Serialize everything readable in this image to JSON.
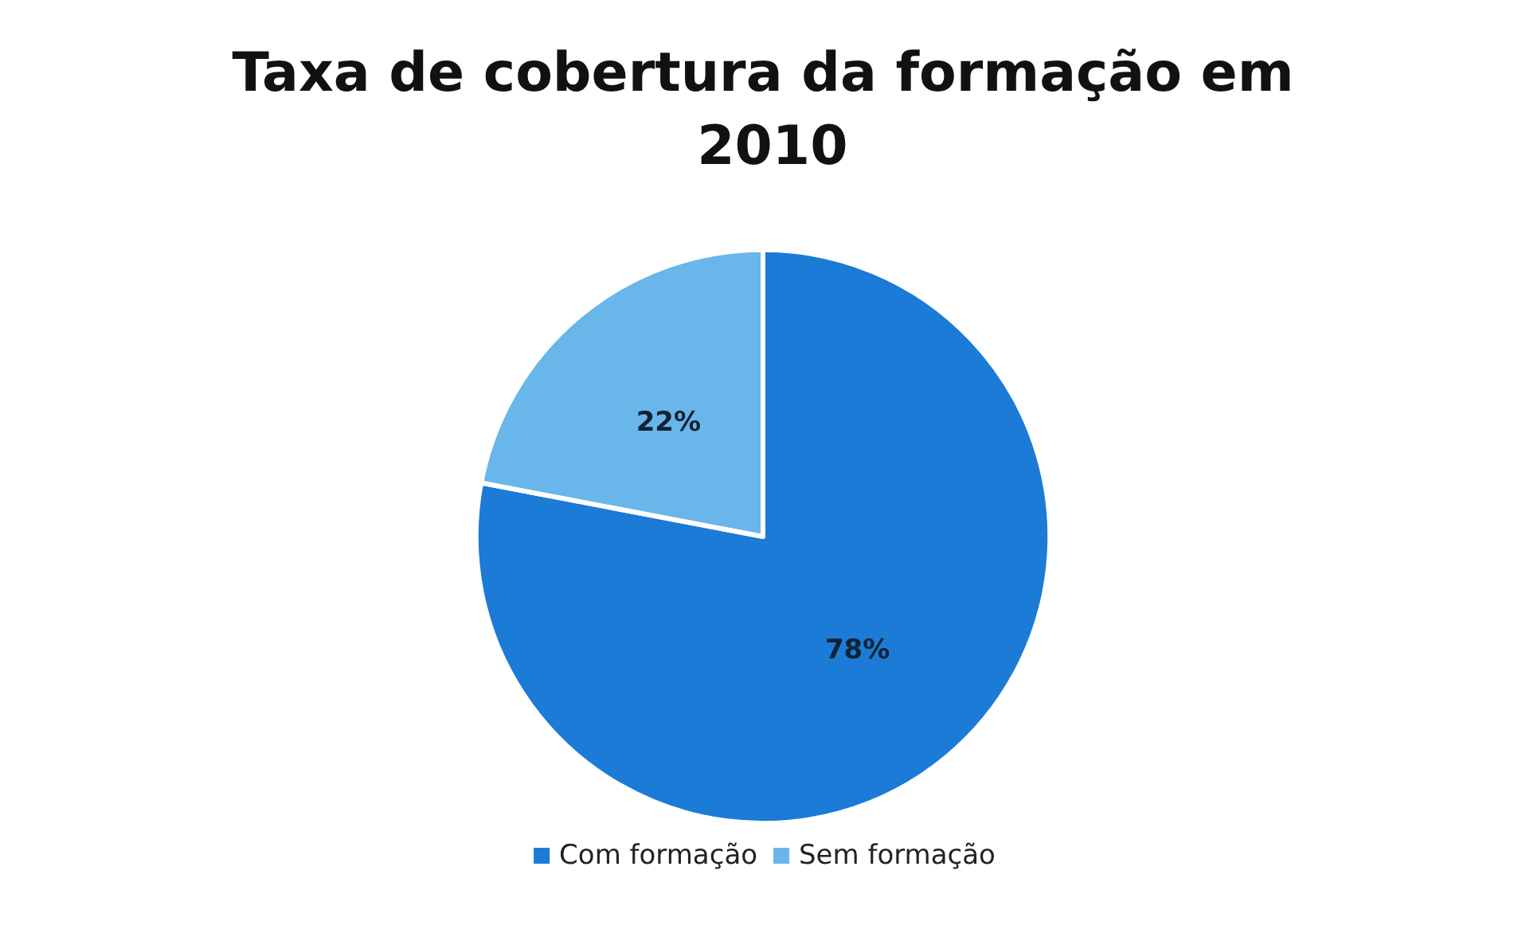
{
  "chart_data": {
    "type": "pie",
    "title": "Taxa de cobertura da formação em 2010",
    "categories": [
      "Com formação",
      "Sem formação"
    ],
    "values": [
      78,
      22
    ],
    "colors": [
      "#1b7bd6",
      "#69b6ea"
    ],
    "value_labels": [
      "78%",
      "22%"
    ],
    "legend": "bottom"
  }
}
